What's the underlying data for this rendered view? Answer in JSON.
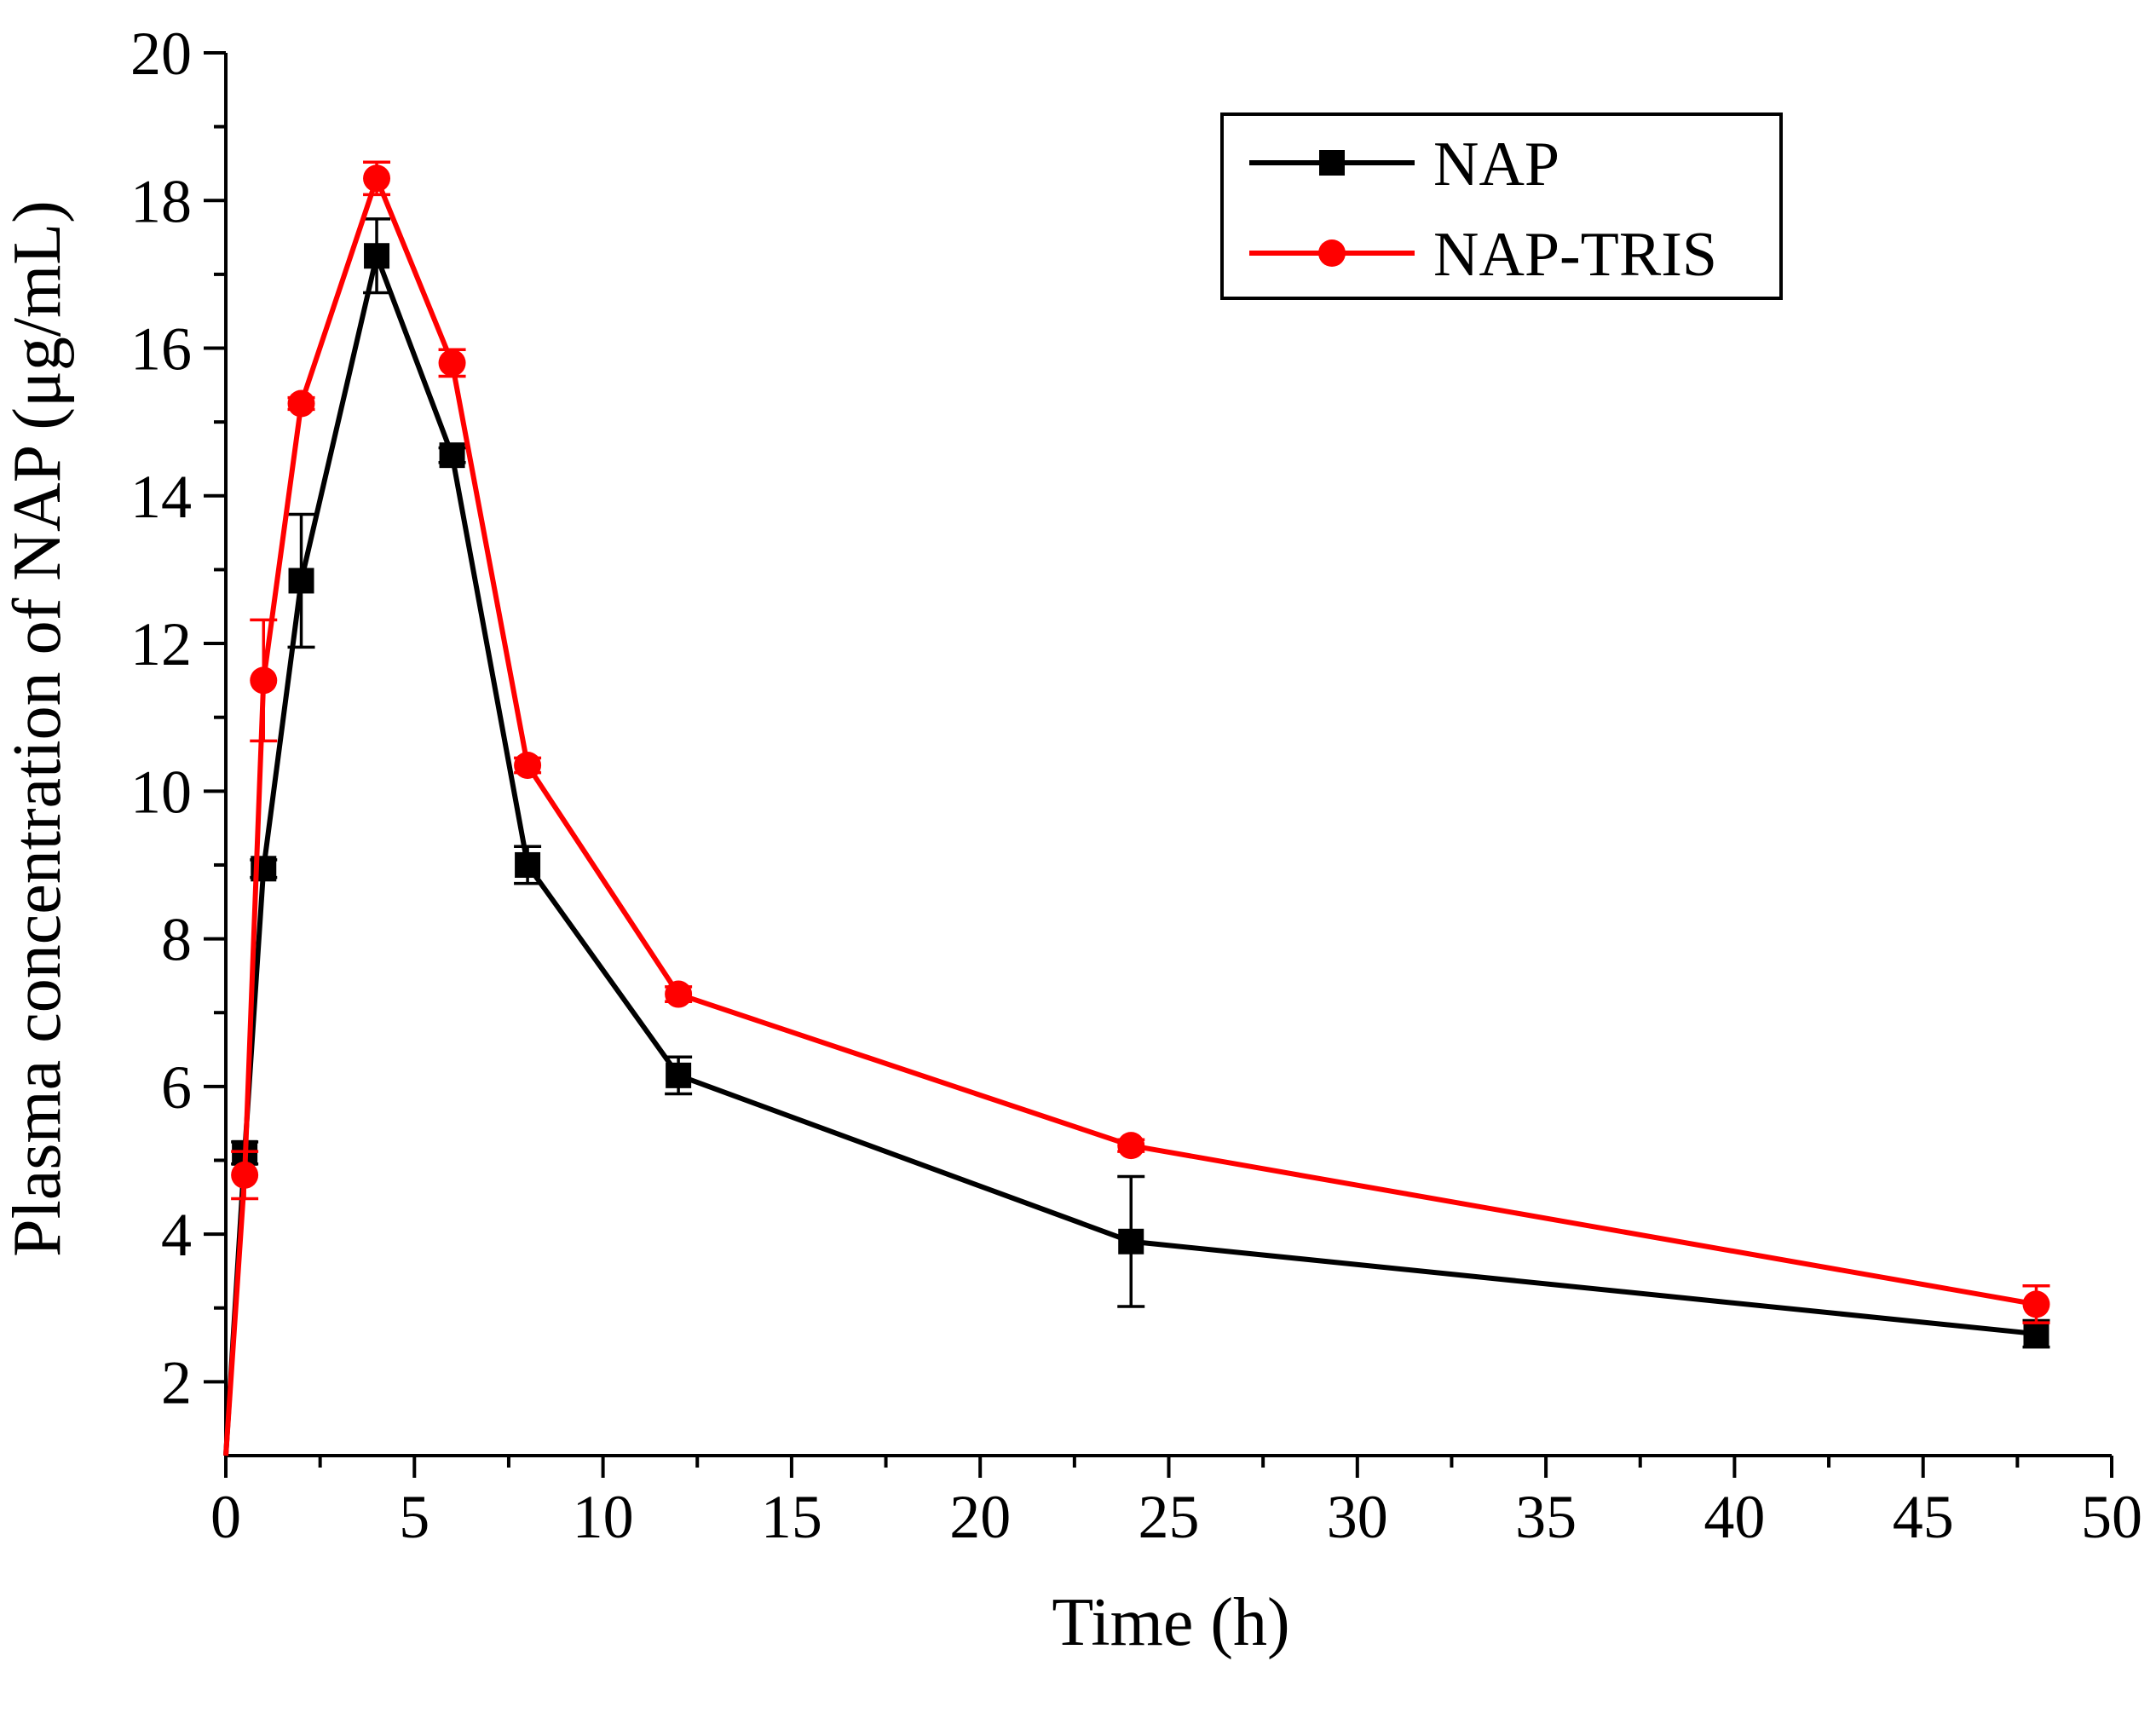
{
  "chart_data": {
    "type": "line",
    "title": "",
    "xlabel": "Time (h)",
    "ylabel": "Plasma concentration of NAP (μg/mL)",
    "xlim": [
      0,
      50
    ],
    "ylim": [
      1,
      20
    ],
    "xticks": [
      0,
      5,
      10,
      15,
      20,
      25,
      30,
      35,
      40,
      45,
      50
    ],
    "yticks": [
      2,
      4,
      6,
      8,
      10,
      12,
      14,
      16,
      18,
      20
    ],
    "grid": false,
    "legend_position": "top-right",
    "series": [
      {
        "name": "NAP",
        "color": "#000000",
        "marker": "square",
        "x": [
          0,
          0.5,
          1,
          2,
          4,
          6,
          8,
          12,
          24,
          48
        ],
        "y": [
          1.0,
          5.1,
          8.95,
          12.85,
          17.25,
          14.55,
          9.0,
          6.15,
          3.9,
          2.65
        ],
        "error": [
          0,
          0.15,
          0.12,
          0.9,
          0.5,
          0.1,
          0.25,
          0.25,
          0.88,
          0.18
        ]
      },
      {
        "name": "NAP-TRIS",
        "color": "#ff0000",
        "marker": "circle",
        "x": [
          0,
          0.5,
          1,
          2,
          4,
          6,
          8,
          12,
          24,
          48
        ],
        "y": [
          1.0,
          4.8,
          11.5,
          15.25,
          18.3,
          15.8,
          10.35,
          7.25,
          5.2,
          3.05
        ],
        "error": [
          0,
          0.32,
          0.82,
          0.08,
          0.22,
          0.18,
          0.1,
          0.1,
          0.08,
          0.25
        ]
      }
    ]
  }
}
